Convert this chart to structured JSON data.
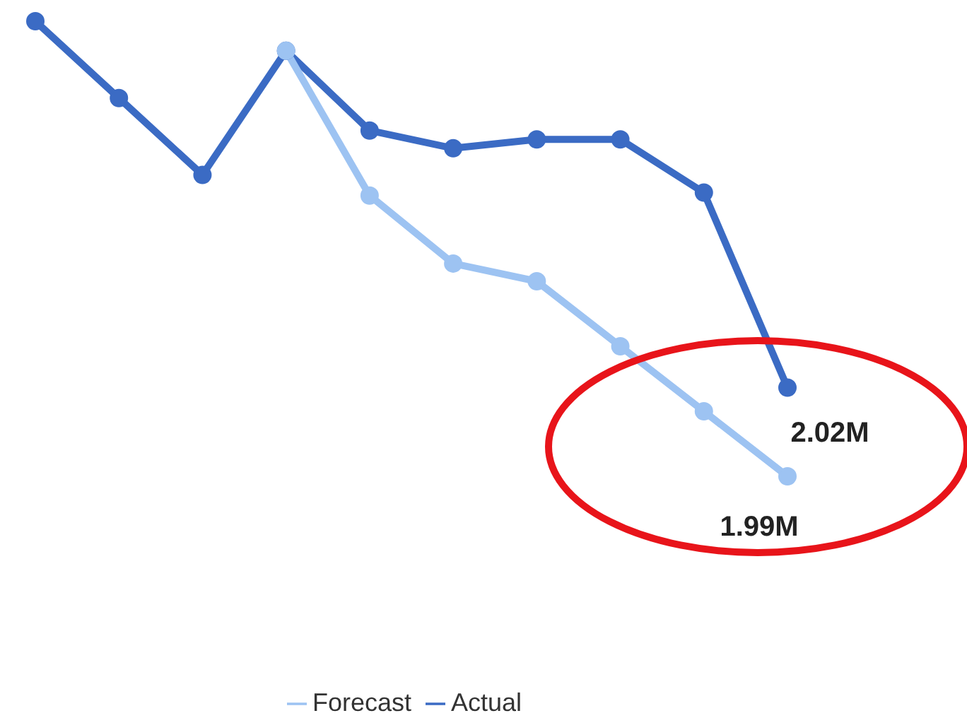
{
  "chart_data": {
    "type": "line",
    "tick_labels": false,
    "categories": [
      null,
      null,
      null,
      null,
      null,
      null,
      null,
      null,
      null,
      null
    ],
    "series": [
      {
        "name": "Forecast",
        "color": "#9dc3f2",
        "values": [
          null,
          null,
          null,
          2.134,
          2.085,
          2.062,
          2.056,
          2.034,
          2.012,
          1.99
        ],
        "value_labels": [
          null,
          null,
          null,
          null,
          null,
          null,
          null,
          null,
          null,
          "1.99M"
        ]
      },
      {
        "name": "Actual",
        "color": "#3b6bc4",
        "values": [
          2.144,
          2.118,
          2.092,
          2.134,
          2.107,
          2.101,
          2.104,
          2.104,
          2.086,
          2.02
        ],
        "value_labels": [
          null,
          null,
          null,
          null,
          null,
          null,
          null,
          null,
          null,
          "2.02M"
        ]
      }
    ],
    "legend": "bottom",
    "marker": "circle",
    "line_style": "solid",
    "grid": false
  }
}
